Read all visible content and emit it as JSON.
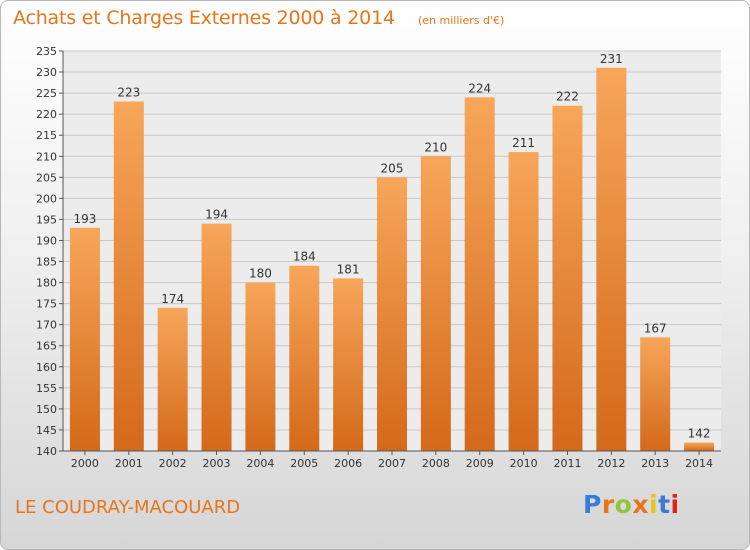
{
  "header": {
    "title": "Achats et Charges Externes 2000 à 2014",
    "unit_note": "(en milliers d'€)"
  },
  "footer": {
    "commune": "LE COUDRAY-MACOUARD",
    "logo_text": "Proxiti",
    "logo_colors": [
      "#3a7bd5",
      "#e8751a",
      "#8dc63f",
      "#e8751a",
      "#e8c51a",
      "#3a7bd5",
      "#e2231a"
    ]
  },
  "colors": {
    "bar_top": "#f7a65a",
    "bar_bottom": "#d4691a",
    "accent": "#e8751a"
  },
  "chart_data": {
    "type": "bar",
    "categories": [
      "2000",
      "2001",
      "2002",
      "2003",
      "2004",
      "2005",
      "2006",
      "2007",
      "2008",
      "2009",
      "2010",
      "2011",
      "2012",
      "2013",
      "2014"
    ],
    "values": [
      193,
      223,
      174,
      194,
      180,
      184,
      181,
      205,
      210,
      224,
      211,
      222,
      231,
      167,
      142
    ],
    "ylim": [
      140,
      235
    ],
    "yticks": [
      140,
      145,
      150,
      155,
      160,
      165,
      170,
      175,
      180,
      185,
      190,
      195,
      200,
      205,
      210,
      215,
      220,
      225,
      230,
      235
    ],
    "grid": true,
    "data_labels": true
  }
}
